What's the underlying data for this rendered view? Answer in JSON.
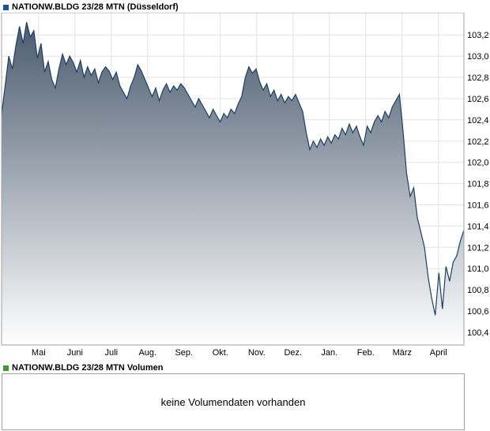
{
  "price_chart": {
    "title": "NATIONW.BLDG 23/28 MTN (Düsseldorf)",
    "marker_color": "#1a53a1"
  },
  "volume_panel": {
    "title": "NATIONW.BLDG 23/28 MTN Volumen",
    "marker_color": "#3c9b2d",
    "message": "keine Volumendaten vorhanden"
  },
  "chart_data": {
    "type": "area",
    "title": "NATIONW.BLDG 23/28 MTN (Düsseldorf)",
    "xlabel": "",
    "ylabel": "",
    "x_tick_labels": [
      "Mai",
      "Juni",
      "Juli",
      "Aug.",
      "Sep.",
      "Okt.",
      "Nov.",
      "Dez.",
      "Jan.",
      "Feb.",
      "März",
      "April"
    ],
    "y_ticks": [
      100.4,
      100.6,
      100.8,
      101.0,
      101.2,
      101.4,
      101.6,
      101.8,
      102.0,
      102.2,
      102.4,
      102.6,
      102.8,
      103.0,
      103.2
    ],
    "ylim": [
      100.28,
      103.41
    ],
    "grid": true,
    "legend_position": "top-left",
    "series": [
      {
        "name": "NATIONW.BLDG 23/28 MTN",
        "values": [
          102.45,
          102.72,
          103.0,
          102.88,
          103.1,
          103.28,
          103.12,
          103.32,
          103.18,
          103.24,
          102.98,
          103.12,
          102.85,
          102.95,
          102.78,
          102.7,
          102.88,
          103.02,
          102.92,
          103.0,
          102.94,
          102.85,
          102.96,
          102.8,
          102.9,
          102.82,
          102.88,
          102.75,
          102.85,
          102.9,
          102.86,
          102.78,
          102.85,
          102.72,
          102.66,
          102.6,
          102.72,
          102.8,
          102.92,
          102.86,
          102.78,
          102.7,
          102.62,
          102.7,
          102.58,
          102.68,
          102.74,
          102.66,
          102.72,
          102.68,
          102.74,
          102.7,
          102.64,
          102.58,
          102.52,
          102.6,
          102.54,
          102.48,
          102.42,
          102.5,
          102.44,
          102.38,
          102.46,
          102.42,
          102.5,
          102.46,
          102.55,
          102.62,
          102.8,
          102.9,
          102.84,
          102.88,
          102.76,
          102.68,
          102.74,
          102.62,
          102.68,
          102.58,
          102.64,
          102.56,
          102.62,
          102.58,
          102.64,
          102.56,
          102.48,
          102.28,
          102.12,
          102.2,
          102.14,
          102.22,
          102.16,
          102.24,
          102.18,
          102.26,
          102.22,
          102.32,
          102.26,
          102.36,
          102.28,
          102.34,
          102.24,
          102.16,
          102.34,
          102.28,
          102.38,
          102.44,
          102.38,
          102.48,
          102.42,
          102.52,
          102.58,
          102.64,
          102.3,
          101.9,
          101.68,
          101.76,
          101.48,
          101.34,
          101.2,
          100.92,
          100.72,
          100.56,
          100.96,
          100.62,
          101.02,
          100.88,
          101.06,
          101.12,
          101.26,
          101.36
        ]
      }
    ],
    "colors": {
      "line": "#1c3f63",
      "fill_top": "#45566a",
      "fill_bottom": "#ffffff",
      "grid": "#e2e2e2",
      "frame": "#a0a0a0"
    }
  }
}
